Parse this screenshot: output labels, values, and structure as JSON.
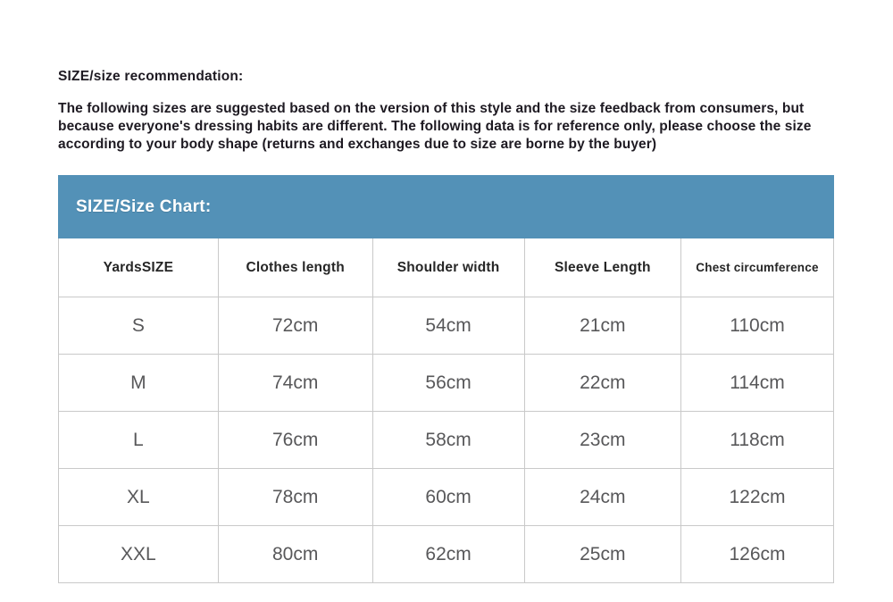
{
  "page": {
    "title": "SIZE/size recommendation:",
    "description": "The following sizes are suggested based on the version of this style and the size feedback from consumers, but because everyone's dressing habits are different. The following data is for reference only, please choose the size according to your body shape (returns and exchanges due to size are borne by the buyer)"
  },
  "size_chart": {
    "header": "SIZE/Size Chart:",
    "columns": [
      "YardsSIZE",
      "Clothes length",
      "Shoulder width",
      "Sleeve Length",
      "Chest circumference"
    ],
    "rows": [
      {
        "size": "S",
        "clothes_length": "72cm",
        "shoulder_width": "54cm",
        "sleeve_length": "21cm",
        "chest_circumference": "110cm"
      },
      {
        "size": "M",
        "clothes_length": "74cm",
        "shoulder_width": "56cm",
        "sleeve_length": "22cm",
        "chest_circumference": "114cm"
      },
      {
        "size": "L",
        "clothes_length": "76cm",
        "shoulder_width": "58cm",
        "sleeve_length": "23cm",
        "chest_circumference": "118cm"
      },
      {
        "size": "XL",
        "clothes_length": "78cm",
        "shoulder_width": "60cm",
        "sleeve_length": "24cm",
        "chest_circumference": "122cm"
      },
      {
        "size": "XXL",
        "clothes_length": "80cm",
        "shoulder_width": "62cm",
        "sleeve_length": "25cm",
        "chest_circumference": "126cm"
      }
    ]
  },
  "colors": {
    "accent_blue": "#5391b7",
    "table_border": "#c9c9c9",
    "heading_text": "#1e1a22",
    "cell_text": "#58585a"
  }
}
